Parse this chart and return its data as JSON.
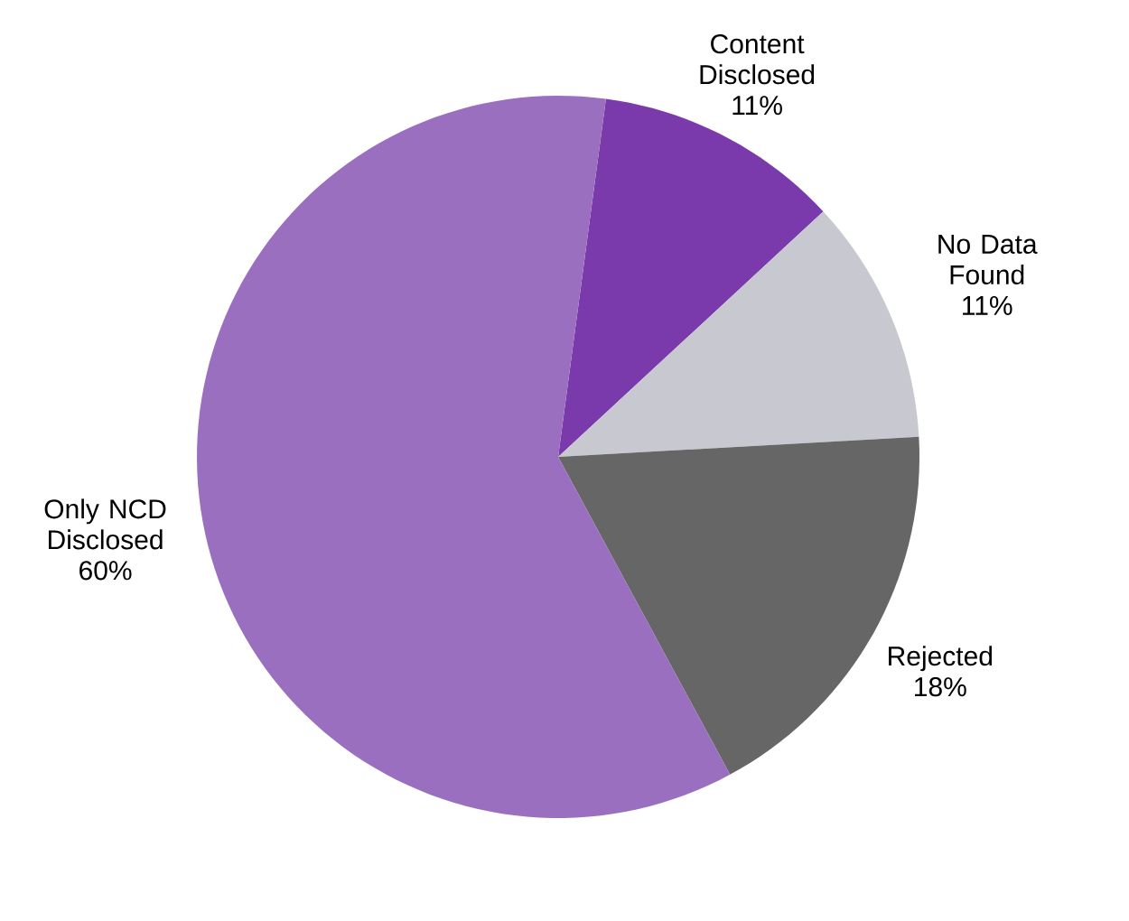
{
  "chart_data": {
    "type": "pie",
    "categories": [
      "Content Disclosed",
      "No Data Found",
      "Rejected",
      "Only NCD Disclosed"
    ],
    "values": [
      11,
      11,
      18,
      60
    ],
    "colors": [
      "#7a3aac",
      "#c8c9d0",
      "#666666",
      "#9a6fc0"
    ],
    "value_labels": [
      "11%",
      "11%",
      "18%",
      "60%"
    ]
  }
}
